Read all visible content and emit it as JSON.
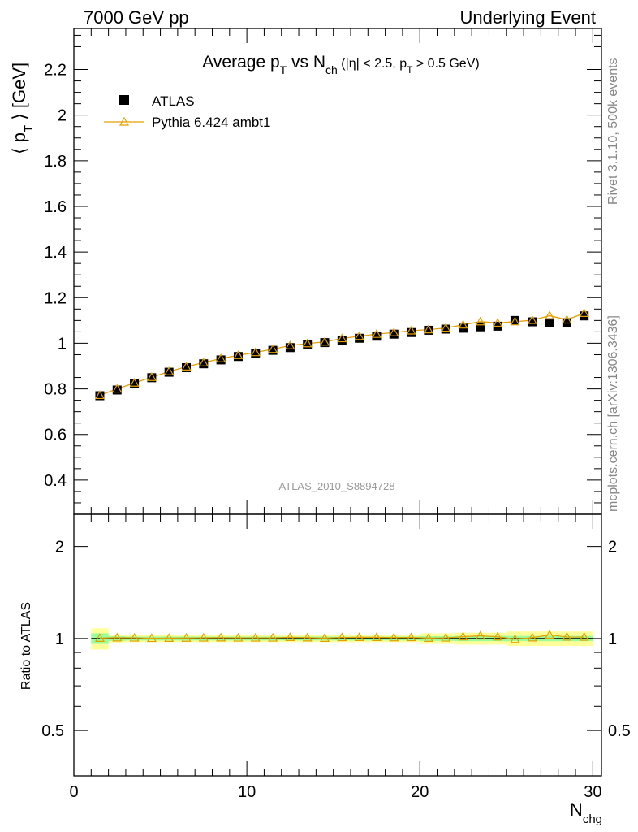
{
  "header": {
    "left": "7000 GeV pp",
    "right": "Underlying Event"
  },
  "side": {
    "rivet": "Rivet 3.1.10,  500k events",
    "mcplots": "mcplots.cern.ch [arXiv:1306.3436]"
  },
  "colors": {
    "mc": "#e5a000",
    "band_inner": "#99ff99",
    "band_outer": "#ffff99",
    "data": "#000000"
  },
  "chart_data": [
    {
      "type": "scatter",
      "title": {
        "main": "Average p",
        "main_sub": "T",
        "mid": " vs N",
        "mid_sub": "ch",
        "cut_open": " (|η| < 2.5, p",
        "cut_sub": "T",
        "cut_close": " > 0.5 GeV)"
      },
      "ylabel": {
        "open": "⟨ p",
        "sub": "T",
        "close": " ⟩ [GeV]"
      },
      "xlim": [
        0,
        30.5
      ],
      "ylim": [
        0.25,
        2.38
      ],
      "yticks": [
        "0.4",
        "0.6",
        "0.8",
        "1",
        "1.2",
        "1.4",
        "1.6",
        "1.8",
        "2",
        "2.2"
      ],
      "legend": {
        "position": "top-left",
        "data": "ATLAS",
        "mc": "Pythia 6.424 ambt1"
      },
      "analysis_label": "ATLAS_2010_S8894728",
      "x": [
        1.5,
        2.5,
        3.5,
        4.5,
        5.5,
        6.5,
        7.5,
        8.5,
        9.5,
        10.5,
        11.5,
        12.5,
        13.5,
        14.5,
        15.5,
        16.5,
        17.5,
        18.5,
        19.5,
        20.5,
        21.5,
        22.5,
        23.5,
        24.5,
        25.5,
        26.5,
        27.5,
        28.5,
        29.5
      ],
      "series": [
        {
          "name": "ATLAS",
          "values": [
            0.77,
            0.795,
            0.822,
            0.849,
            0.873,
            0.893,
            0.91,
            0.927,
            0.942,
            0.955,
            0.969,
            0.981,
            0.993,
            1.003,
            1.013,
            1.022,
            1.031,
            1.04,
            1.047,
            1.057,
            1.062,
            1.066,
            1.072,
            1.075,
            1.1,
            1.094,
            1.09,
            1.09,
            1.12
          ]
        },
        {
          "name": "Pythia 6.424 ambt1",
          "values": [
            0.772,
            0.8,
            0.826,
            0.851,
            0.876,
            0.897,
            0.915,
            0.933,
            0.947,
            0.96,
            0.974,
            0.99,
            0.999,
            1.006,
            1.021,
            1.031,
            1.04,
            1.047,
            1.055,
            1.06,
            1.067,
            1.081,
            1.095,
            1.089,
            1.095,
            1.101,
            1.121,
            1.103,
            1.132
          ]
        }
      ]
    },
    {
      "type": "scatter",
      "ylabel": "Ratio to ATLAS",
      "xlabel": {
        "main": "N",
        "sub": "chg"
      },
      "xlim": [
        0,
        30.5
      ],
      "ylim": [
        0.355,
        2.55
      ],
      "log_y": true,
      "yticks": [
        {
          "value": 0.5,
          "label": "0.5"
        },
        {
          "value": 1,
          "label": "1"
        },
        {
          "value": 2,
          "label": "2"
        }
      ],
      "xticks": [
        {
          "value": 0,
          "label": "0"
        },
        {
          "value": 10,
          "label": "10"
        },
        {
          "value": 20,
          "label": "20"
        },
        {
          "value": 30,
          "label": "30"
        }
      ],
      "ratio_values": [
        1.003,
        1.006,
        1.005,
        1.002,
        1.003,
        1.004,
        1.005,
        1.006,
        1.005,
        1.005,
        1.005,
        1.009,
        1.006,
        1.003,
        1.008,
        1.009,
        1.009,
        1.007,
        1.008,
        1.003,
        1.005,
        1.014,
        1.021,
        1.013,
        0.995,
        1.006,
        1.028,
        1.012,
        1.011
      ],
      "band_inner": [
        0.04,
        0.018,
        0.015,
        0.015,
        0.015,
        0.015,
        0.015,
        0.015,
        0.015,
        0.015,
        0.015,
        0.015,
        0.015,
        0.015,
        0.015,
        0.015,
        0.015,
        0.015,
        0.015,
        0.018,
        0.018,
        0.02,
        0.02,
        0.02,
        0.02,
        0.02,
        0.02,
        0.02,
        0.02
      ],
      "band_outer": [
        0.08,
        0.03,
        0.027,
        0.027,
        0.027,
        0.027,
        0.027,
        0.027,
        0.027,
        0.027,
        0.027,
        0.027,
        0.027,
        0.027,
        0.027,
        0.027,
        0.027,
        0.027,
        0.027,
        0.04,
        0.04,
        0.045,
        0.045,
        0.045,
        0.055,
        0.055,
        0.055,
        0.055,
        0.055
      ]
    }
  ]
}
